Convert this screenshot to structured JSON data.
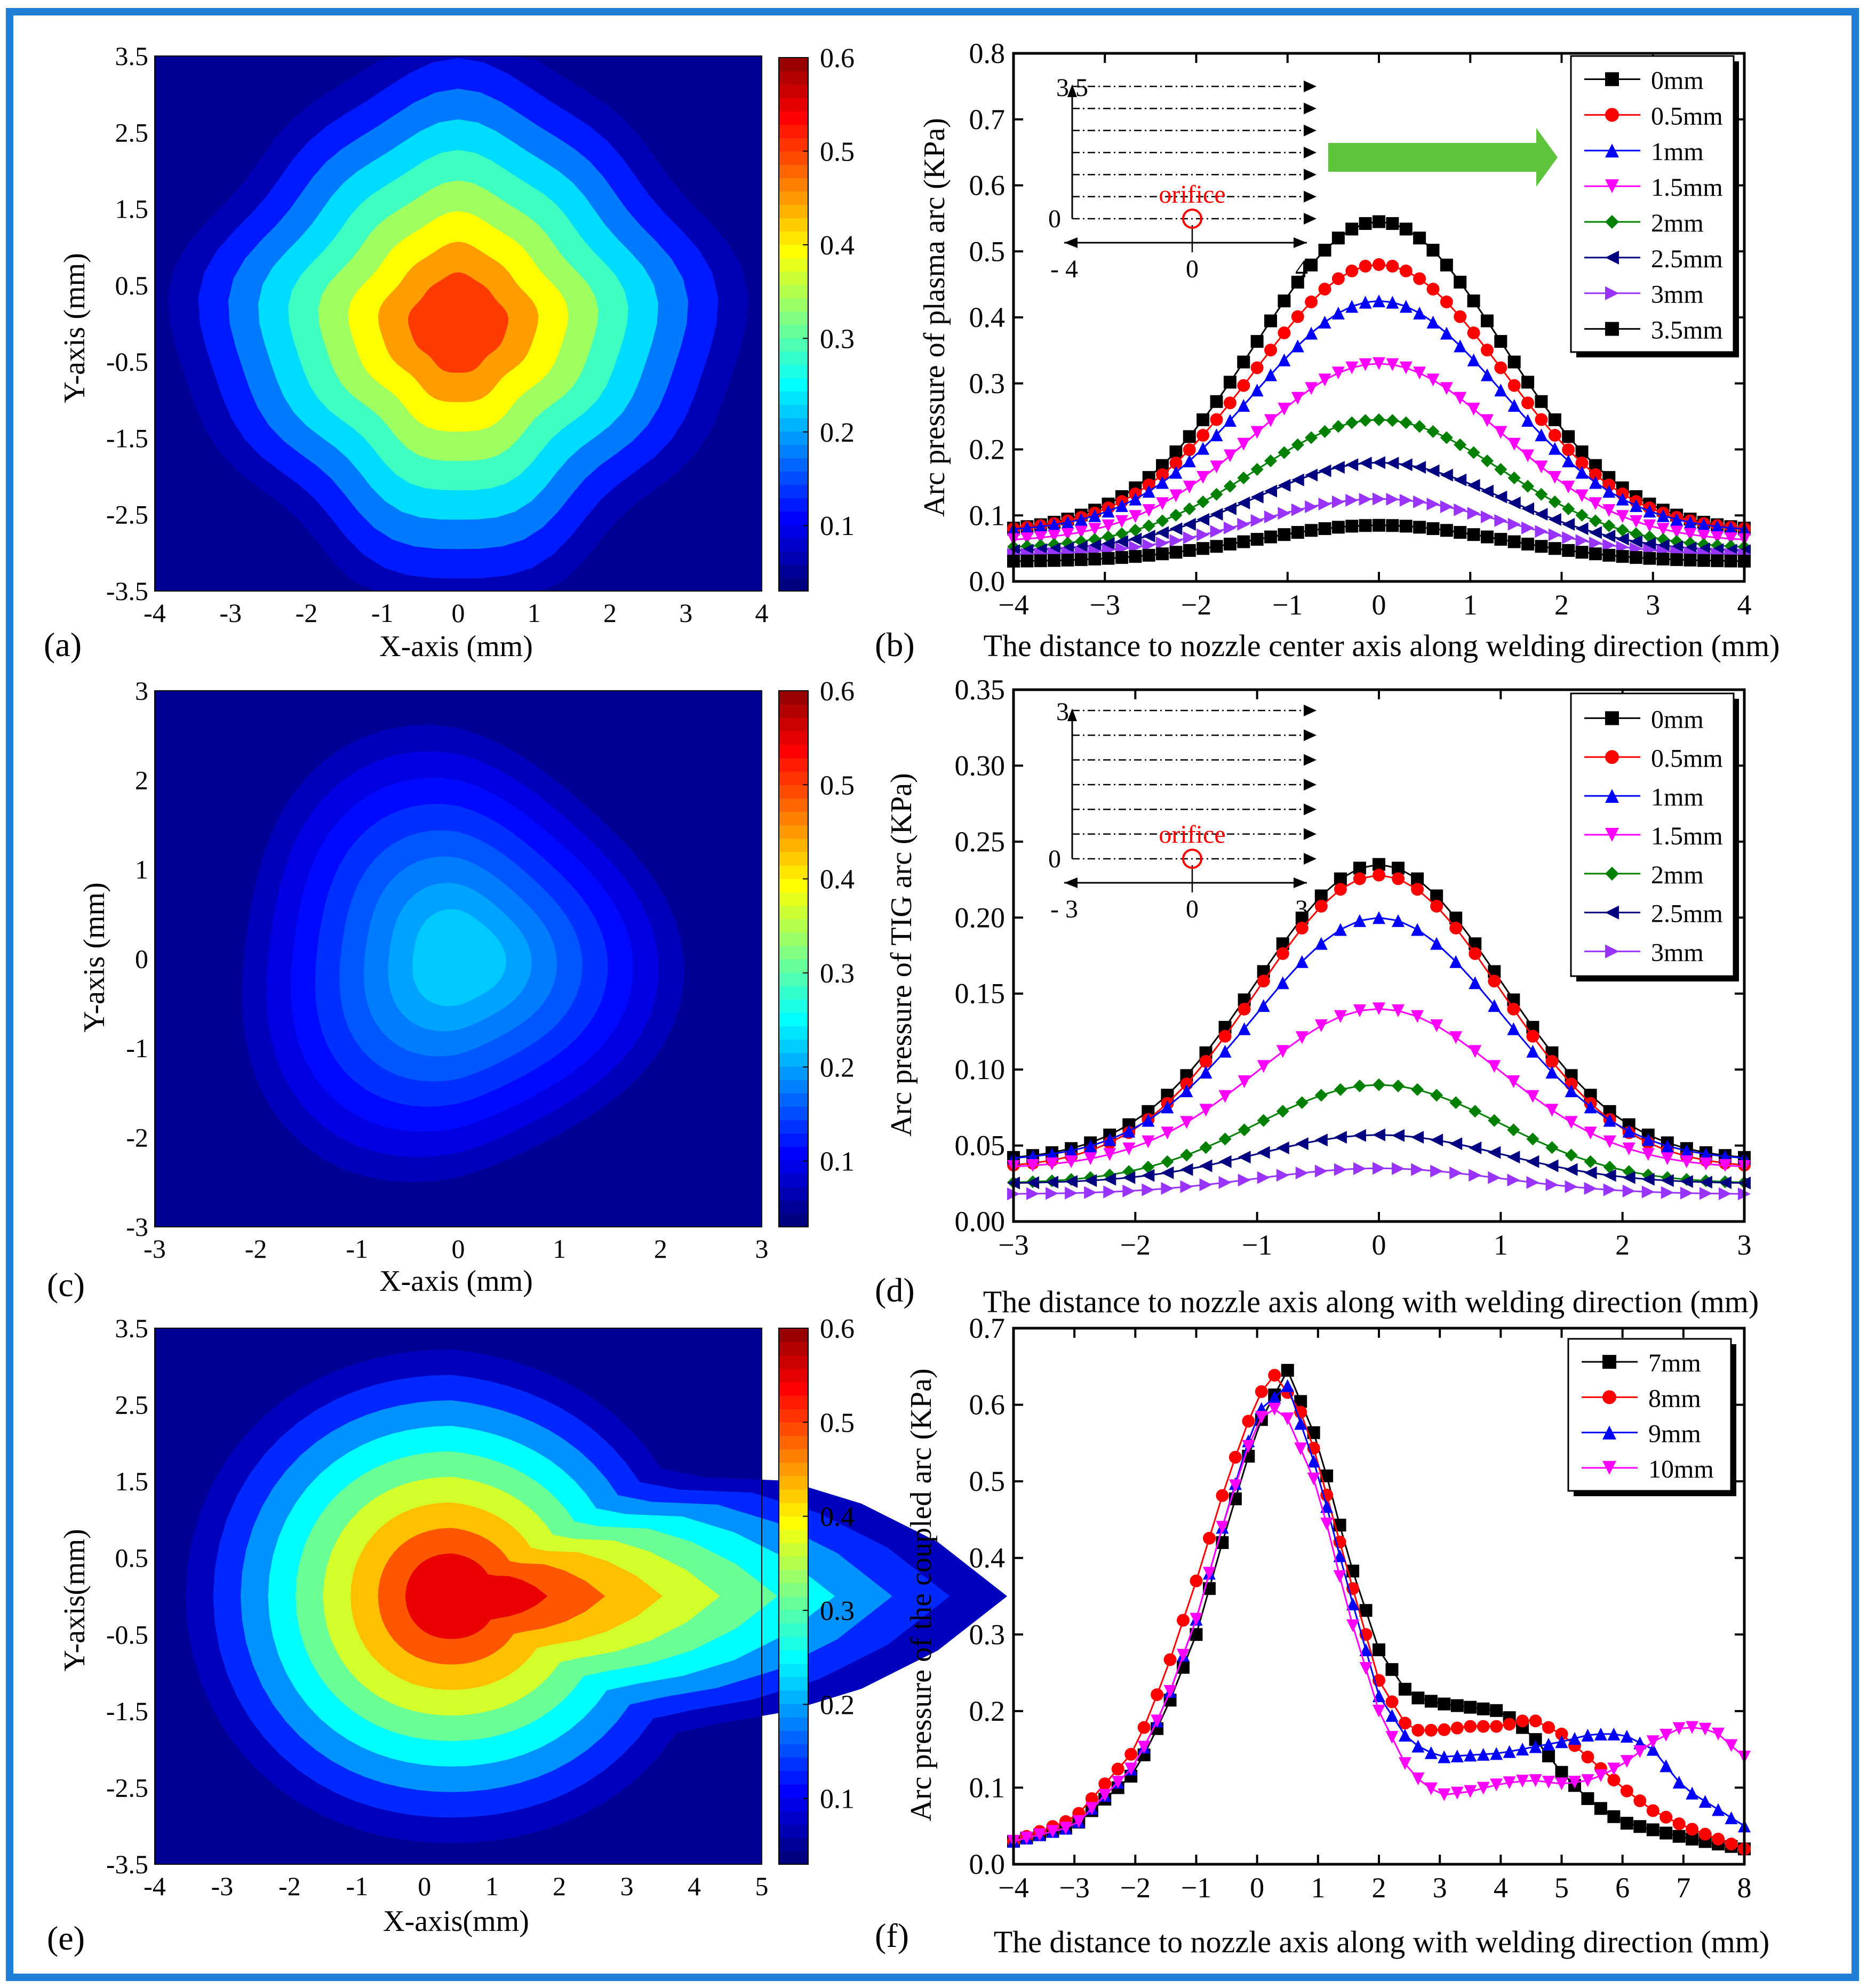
{
  "figure": {
    "frame_color": "#1f7fd6",
    "colorbar": {
      "ticks": [
        "0.6",
        "0.5",
        "0.4",
        "0.3",
        "0.2",
        "0.1"
      ],
      "min": 0.03,
      "max": 0.6
    },
    "legend_order_colors": [
      "#000000",
      "#ff0000",
      "#0000ff",
      "#ff00ff",
      "#008000",
      "#000080",
      "#9933ff",
      "#000000"
    ]
  },
  "chart_data": [
    {
      "id": "a",
      "type": "heatmap",
      "panel_label": "(a)",
      "xlabel": "X-axis (mm)",
      "ylabel": "Y-axis (mm)",
      "xticks": [
        "-4",
        "-3",
        "-2",
        "-1",
        "0",
        "1",
        "2",
        "3",
        "4"
      ],
      "yticks": [
        "3.5",
        "2.5",
        "1.5",
        "0.5",
        "-0.5",
        "-1.5",
        "-2.5",
        "-3.5"
      ],
      "xlim": [
        -4,
        4
      ],
      "ylim": [
        -3.5,
        3.5
      ],
      "colorbar_range": [
        0.03,
        0.6
      ],
      "peak_value": 0.55,
      "peak_x": 0,
      "peak_y": 0
    },
    {
      "id": "b",
      "type": "line",
      "panel_label": "(b)",
      "xlabel": "The distance to nozzle center axis along welding direction (mm)",
      "ylabel": "Arc pressure of plasma arc (KPa)",
      "xlim": [
        -4,
        4
      ],
      "ylim": [
        0,
        0.8
      ],
      "xticks": [
        "−4",
        "−3",
        "−2",
        "−1",
        "0",
        "1",
        "2",
        "3",
        "4"
      ],
      "yticks": [
        "0.0",
        "0.1",
        "0.2",
        "0.3",
        "0.4",
        "0.5",
        "0.6",
        "0.7",
        "0.8"
      ],
      "series": [
        {
          "name": "0mm",
          "peak": 0.545,
          "edge": 0.075
        },
        {
          "name": "0.5mm",
          "peak": 0.48,
          "edge": 0.075
        },
        {
          "name": "1mm",
          "peak": 0.425,
          "edge": 0.075
        },
        {
          "name": "1.5mm",
          "peak": 0.33,
          "edge": 0.06
        },
        {
          "name": "2mm",
          "peak": 0.245,
          "edge": 0.05
        },
        {
          "name": "2.5mm",
          "peak": 0.18,
          "edge": 0.045
        },
        {
          "name": "3mm",
          "peak": 0.125,
          "edge": 0.04
        },
        {
          "name": "3.5mm",
          "peak": 0.085,
          "edge": 0.03
        }
      ],
      "inset": {
        "top_label": "3.5",
        "zero_label": "0",
        "x_left": "- 4",
        "x_mid": "0",
        "x_right": "4",
        "orifice": "orifice"
      }
    },
    {
      "id": "c",
      "type": "heatmap",
      "panel_label": "(c)",
      "xlabel": "X-axis (mm)",
      "ylabel": "Y-axis (mm)",
      "xticks": [
        "-3",
        "-2",
        "-1",
        "0",
        "1",
        "2",
        "3"
      ],
      "yticks": [
        "3",
        "2",
        "1",
        "0",
        "-1",
        "-2",
        "-3"
      ],
      "xlim": [
        -3,
        3
      ],
      "ylim": [
        -3,
        3
      ],
      "colorbar_range": [
        0.03,
        0.6
      ],
      "peak_value": 0.235,
      "peak_x": 0,
      "peak_y": 0
    },
    {
      "id": "d",
      "type": "line",
      "panel_label": "(d)",
      "xlabel": "The distance to  nozzle axis along with welding direction (mm)",
      "ylabel": "Arc pressure of TIG arc (KPa)",
      "xlim": [
        -3,
        3
      ],
      "ylim": [
        0,
        0.35
      ],
      "xticks": [
        "−3",
        "−2",
        "−1",
        "0",
        "1",
        "2",
        "3"
      ],
      "yticks": [
        "0.00",
        "0.05",
        "0.10",
        "0.15",
        "0.20",
        "0.25",
        "0.30",
        "0.35"
      ],
      "series": [
        {
          "name": "0mm",
          "peak": 0.235,
          "edge": 0.04
        },
        {
          "name": "0.5mm",
          "peak": 0.228,
          "edge": 0.035
        },
        {
          "name": "1mm",
          "peak": 0.2,
          "edge": 0.04
        },
        {
          "name": "1.5mm",
          "peak": 0.14,
          "edge": 0.035
        },
        {
          "name": "2mm",
          "peak": 0.09,
          "edge": 0.025
        },
        {
          "name": "2.5mm",
          "peak": 0.057,
          "edge": 0.025
        },
        {
          "name": "3mm",
          "peak": 0.035,
          "edge": 0.018
        }
      ],
      "inset": {
        "top_label": "3",
        "zero_label": "0",
        "x_left": "- 3",
        "x_mid": "0",
        "x_right": "3",
        "orifice": "orifice"
      }
    },
    {
      "id": "e",
      "type": "heatmap",
      "panel_label": "(e)",
      "xlabel": "X-axis(mm)",
      "ylabel": "Y-axis(mm)",
      "xticks": [
        "-4",
        "-3",
        "-2",
        "-1",
        "0",
        "1",
        "2",
        "3",
        "4",
        "5"
      ],
      "yticks": [
        "3.5",
        "2.5",
        "1.5",
        "0.5",
        "-0.5",
        "-1.5",
        "-2.5",
        "-3.5"
      ],
      "xlim": [
        -4,
        5
      ],
      "ylim": [
        -3.5,
        3.5
      ],
      "colorbar_range": [
        0.03,
        0.6
      ],
      "peak_value": 0.6,
      "peak_x": 0.4,
      "peak_y": 0
    },
    {
      "id": "f",
      "type": "line",
      "panel_label": "(f)",
      "xlabel": "The distance to nozzle axis along with welding direction (mm)",
      "ylabel": "Arc pressure of the coupled arc (KPa)",
      "xlim": [
        -4,
        8
      ],
      "ylim": [
        0,
        0.7
      ],
      "xticks": [
        "−4",
        "−3",
        "−2",
        "−1",
        "0",
        "1",
        "2",
        "3",
        "4",
        "5",
        "6",
        "7",
        "8"
      ],
      "yticks": [
        "0.0",
        "0.1",
        "0.2",
        "0.3",
        "0.4",
        "0.5",
        "0.6",
        "0.7"
      ],
      "series": [
        {
          "name": "7mm",
          "points": [
            [
              -4,
              0.03
            ],
            [
              -3,
              0.05
            ],
            [
              -2,
              0.12
            ],
            [
              -1.5,
              0.2
            ],
            [
              -1,
              0.3
            ],
            [
              -0.5,
              0.44
            ],
            [
              0,
              0.57
            ],
            [
              0.5,
              0.645
            ],
            [
              1,
              0.55
            ],
            [
              1.5,
              0.4
            ],
            [
              2,
              0.28
            ],
            [
              2.5,
              0.22
            ],
            [
              3,
              0.21
            ],
            [
              3.5,
              0.205
            ],
            [
              4,
              0.2
            ],
            [
              4.5,
              0.17
            ],
            [
              5,
              0.12
            ],
            [
              5.5,
              0.08
            ],
            [
              6,
              0.055
            ],
            [
              7,
              0.035
            ],
            [
              8,
              0.02
            ]
          ]
        },
        {
          "name": "8mm",
          "points": [
            [
              -4,
              0.03
            ],
            [
              -3,
              0.06
            ],
            [
              -2,
              0.15
            ],
            [
              -1.5,
              0.25
            ],
            [
              -1,
              0.37
            ],
            [
              -0.5,
              0.5
            ],
            [
              0,
              0.61
            ],
            [
              0.3,
              0.64
            ],
            [
              0.8,
              0.58
            ],
            [
              1.5,
              0.38
            ],
            [
              2,
              0.24
            ],
            [
              2.5,
              0.175
            ],
            [
              3,
              0.175
            ],
            [
              3.5,
              0.18
            ],
            [
              4,
              0.18
            ],
            [
              4.5,
              0.19
            ],
            [
              5,
              0.17
            ],
            [
              6,
              0.1
            ],
            [
              6.5,
              0.07
            ],
            [
              7,
              0.05
            ],
            [
              8,
              0.02
            ]
          ]
        },
        {
          "name": "9mm",
          "points": [
            [
              -4,
              0.03
            ],
            [
              -3,
              0.05
            ],
            [
              -2,
              0.13
            ],
            [
              -1.5,
              0.21
            ],
            [
              -1,
              0.32
            ],
            [
              -0.5,
              0.46
            ],
            [
              0,
              0.59
            ],
            [
              0.5,
              0.625
            ],
            [
              1,
              0.51
            ],
            [
              1.5,
              0.36
            ],
            [
              2,
              0.22
            ],
            [
              2.5,
              0.16
            ],
            [
              3,
              0.14
            ],
            [
              4,
              0.145
            ],
            [
              5,
              0.16
            ],
            [
              5.5,
              0.17
            ],
            [
              6,
              0.17
            ],
            [
              6.5,
              0.15
            ],
            [
              7,
              0.1
            ],
            [
              8,
              0.05
            ]
          ]
        },
        {
          "name": "10mm",
          "points": [
            [
              -4,
              0.03
            ],
            [
              -3,
              0.05
            ],
            [
              -2,
              0.13
            ],
            [
              -1.5,
              0.21
            ],
            [
              -1,
              0.32
            ],
            [
              -0.5,
              0.46
            ],
            [
              0,
              0.58
            ],
            [
              0.4,
              0.6
            ],
            [
              1,
              0.49
            ],
            [
              1.5,
              0.33
            ],
            [
              2,
              0.2
            ],
            [
              2.5,
              0.12
            ],
            [
              3,
              0.09
            ],
            [
              3.5,
              0.095
            ],
            [
              4,
              0.105
            ],
            [
              4.5,
              0.11
            ],
            [
              5,
              0.105
            ],
            [
              5.5,
              0.11
            ],
            [
              6,
              0.13
            ],
            [
              6.5,
              0.16
            ],
            [
              7,
              0.18
            ],
            [
              7.5,
              0.175
            ],
            [
              8,
              0.14
            ]
          ]
        }
      ]
    }
  ]
}
